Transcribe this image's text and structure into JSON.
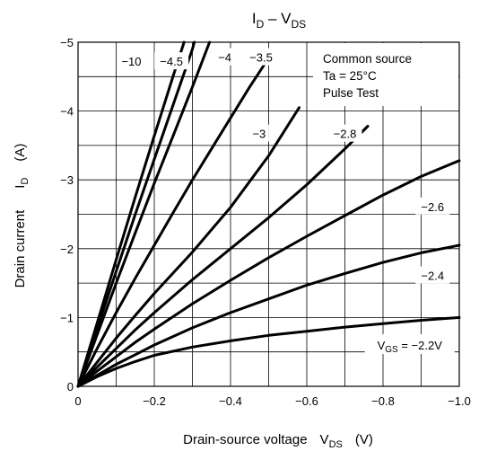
{
  "chart_data": {
    "type": "line",
    "title": {
      "main": "I",
      "sub1": "D",
      "dash": " – V",
      "sub2": "DS"
    },
    "xlabel": {
      "main": "Drain-source voltage",
      "sym": "V",
      "sub": "DS",
      "unit": "(V)"
    },
    "ylabel": {
      "main": "Drain current",
      "sym": "I",
      "sub": "D",
      "unit": "(A)"
    },
    "xlim": [
      0,
      -1.0
    ],
    "ylim": [
      0,
      -5
    ],
    "grid": true,
    "x_ticks": [
      {
        "value": 0,
        "label": "0"
      },
      {
        "value": -0.2,
        "label": "−0.2"
      },
      {
        "value": -0.4,
        "label": "−0.4"
      },
      {
        "value": -0.6,
        "label": "−0.6"
      },
      {
        "value": -0.8,
        "label": "−0.8"
      },
      {
        "value": -1.0,
        "label": "−1.0"
      }
    ],
    "y_ticks": [
      {
        "value": 0,
        "label": "0"
      },
      {
        "value": -1,
        "label": "−1"
      },
      {
        "value": -2,
        "label": "−2"
      },
      {
        "value": -3,
        "label": "−3"
      },
      {
        "value": -4,
        "label": "−4"
      },
      {
        "value": -5,
        "label": "−5"
      }
    ],
    "annotation": {
      "lines": [
        "Common source",
        "Ta = 25°C",
        "Pulse Test"
      ],
      "placement": "top-right"
    },
    "series": [
      {
        "label": "−10",
        "label_x": -0.14,
        "label_y": -4.71,
        "x": [
          0,
          -0.05,
          -0.1,
          -0.15,
          -0.2,
          -0.25,
          -0.278
        ],
        "y": [
          0,
          -0.92,
          -1.84,
          -2.75,
          -3.64,
          -4.52,
          -5.0
        ]
      },
      {
        "label": "−4.5",
        "label_x": -0.245,
        "label_y": -4.71,
        "x": [
          0,
          -0.05,
          -0.1,
          -0.15,
          -0.2,
          -0.25,
          -0.3,
          -0.305
        ],
        "y": [
          0,
          -0.84,
          -1.67,
          -2.5,
          -3.3,
          -4.1,
          -4.9,
          -5.0
        ]
      },
      {
        "label": "−4",
        "label_x": -0.385,
        "label_y": -4.77,
        "x": [
          0,
          -0.05,
          -0.1,
          -0.15,
          -0.2,
          -0.25,
          -0.3,
          -0.345
        ],
        "y": [
          0,
          -0.75,
          -1.5,
          -2.23,
          -2.95,
          -3.65,
          -4.35,
          -5.0
        ]
      },
      {
        "label": "−3.5",
        "label_x": -0.48,
        "label_y": -4.77,
        "x": [
          0,
          -0.05,
          -0.1,
          -0.15,
          -0.2,
          -0.25,
          -0.3,
          -0.35,
          -0.4,
          -0.45,
          -0.5
        ],
        "y": [
          0,
          -0.55,
          -1.07,
          -1.57,
          -2.05,
          -2.53,
          -3.0,
          -3.45,
          -3.9,
          -4.35,
          -4.77
        ]
      },
      {
        "label": "−3",
        "label_x": -0.475,
        "label_y": -3.66,
        "x": [
          0,
          -0.05,
          -0.1,
          -0.15,
          -0.2,
          -0.3,
          -0.4,
          -0.5,
          -0.58
        ],
        "y": [
          0,
          -0.35,
          -0.7,
          -1.03,
          -1.35,
          -1.95,
          -2.6,
          -3.35,
          -4.05
        ]
      },
      {
        "label": "−2.8",
        "label_x": -0.7,
        "label_y": -3.66,
        "x": [
          0,
          -0.05,
          -0.1,
          -0.15,
          -0.2,
          -0.3,
          -0.4,
          -0.5,
          -0.6,
          -0.7,
          -0.76
        ],
        "y": [
          0,
          -0.28,
          -0.55,
          -0.82,
          -1.07,
          -1.55,
          -2.0,
          -2.45,
          -2.93,
          -3.45,
          -3.78
        ]
      },
      {
        "label": "−2.6",
        "label_x": -0.93,
        "label_y": -2.6,
        "x": [
          0,
          -0.05,
          -0.1,
          -0.15,
          -0.2,
          -0.3,
          -0.4,
          -0.5,
          -0.6,
          -0.7,
          -0.8,
          -0.9,
          -1.0
        ],
        "y": [
          0,
          -0.22,
          -0.43,
          -0.64,
          -0.83,
          -1.2,
          -1.54,
          -1.87,
          -2.18,
          -2.48,
          -2.78,
          -3.05,
          -3.28
        ]
      },
      {
        "label": "−2.4",
        "label_x": -0.93,
        "label_y": -1.6,
        "x": [
          0,
          -0.05,
          -0.1,
          -0.15,
          -0.2,
          -0.3,
          -0.4,
          -0.5,
          -0.6,
          -0.7,
          -0.8,
          -0.9,
          -1.0
        ],
        "y": [
          0,
          -0.16,
          -0.32,
          -0.46,
          -0.6,
          -0.85,
          -1.07,
          -1.27,
          -1.47,
          -1.64,
          -1.8,
          -1.94,
          -2.05
        ]
      },
      {
        "label": "V<sub>GS</sub> = −2.2V",
        "label_main": "V",
        "label_sub": "GS",
        "label_rest": " = −2.2V",
        "label_x": -0.87,
        "label_y": -0.6,
        "x": [
          0,
          -0.05,
          -0.1,
          -0.15,
          -0.2,
          -0.3,
          -0.4,
          -0.5,
          -0.6,
          -0.7,
          -0.8,
          -0.9,
          -1.0
        ],
        "y": [
          0,
          -0.14,
          -0.26,
          -0.36,
          -0.45,
          -0.57,
          -0.66,
          -0.74,
          -0.8,
          -0.86,
          -0.91,
          -0.96,
          -1.0
        ]
      }
    ]
  }
}
